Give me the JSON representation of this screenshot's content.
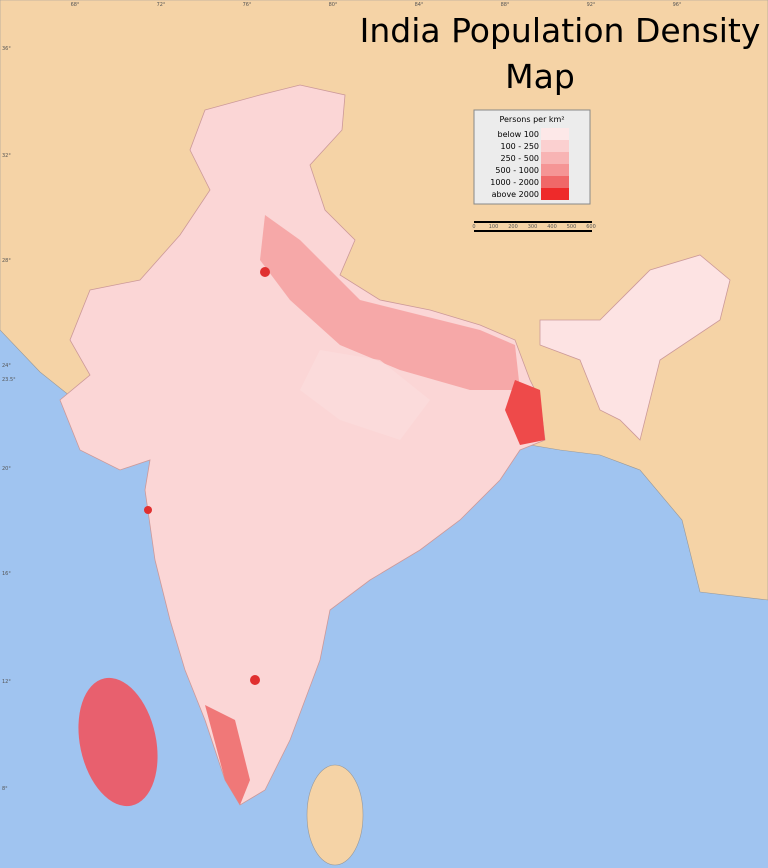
{
  "title_lines": [
    "India Population Density",
    "Map"
  ],
  "legend": {
    "title": "Persons per km²",
    "items": [
      {
        "label": "below 100",
        "color": "#fde8e8"
      },
      {
        "label": "100 - 250",
        "color": "#fbd0d0"
      },
      {
        "label": "250 - 500",
        "color": "#f8b4b4"
      },
      {
        "label": "500 - 1000",
        "color": "#f59595"
      },
      {
        "label": "1000 - 2000",
        "color": "#f06868"
      },
      {
        "label": "above 2000",
        "color": "#ee2a2a"
      }
    ]
  },
  "scale_labels": [
    "0",
    "100",
    "200",
    "300",
    "400",
    "500",
    "600"
  ],
  "latitude_labels": [
    "36°",
    "32°",
    "28°",
    "24°",
    "23.5°",
    "20°",
    "16°",
    "12°",
    "8°"
  ],
  "longitude_labels": [
    "68°",
    "72°",
    "76°",
    "80°",
    "84°",
    "88°",
    "92°",
    "96°"
  ]
}
